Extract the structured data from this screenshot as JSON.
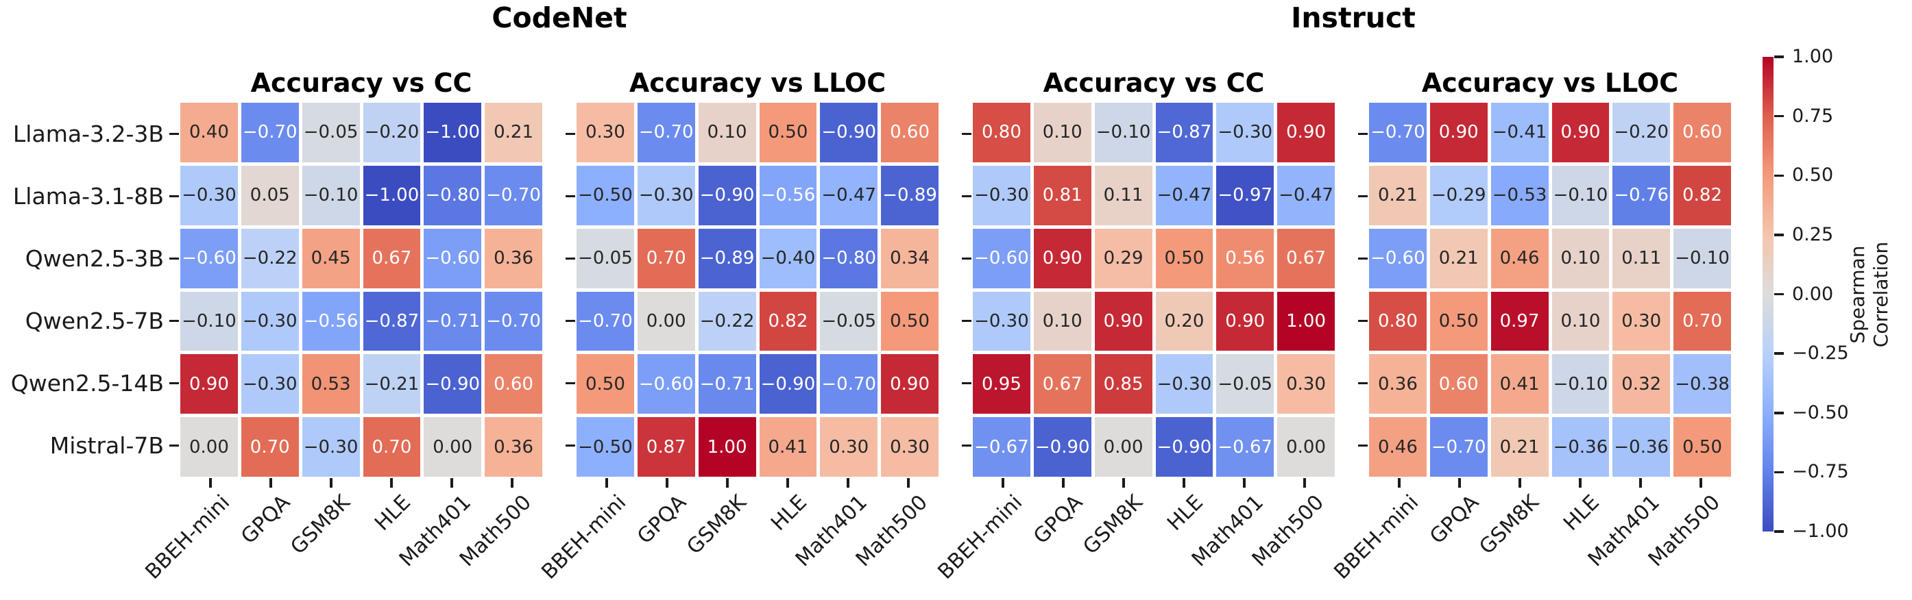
{
  "chart_data": {
    "type": "heatmap",
    "layout": "four heatmap panels in one row sharing row labels, with one shared vertical colorbar on the right; grid off; values annotated in each cell",
    "group_titles": [
      {
        "label": "CodeNet",
        "panels": [
          0,
          1
        ]
      },
      {
        "label": "Instruct",
        "panels": [
          2,
          3
        ]
      }
    ],
    "rows": [
      "Llama-3.2-3B",
      "Llama-3.1-8B",
      "Qwen2.5-3B",
      "Qwen2.5-7B",
      "Qwen2.5-14B",
      "Mistral-7B"
    ],
    "columns": [
      "BBEH-mini",
      "GPQA",
      "GSM8K",
      "HLE",
      "Math401",
      "Math500"
    ],
    "panels": [
      {
        "group": "CodeNet",
        "title": "Accuracy vs CC",
        "values": [
          [
            0.4,
            -0.7,
            -0.05,
            -0.2,
            -1.0,
            0.21
          ],
          [
            -0.3,
            0.05,
            -0.1,
            -1.0,
            -0.8,
            -0.7
          ],
          [
            -0.6,
            -0.22,
            0.45,
            0.67,
            -0.6,
            0.36
          ],
          [
            -0.1,
            -0.3,
            -0.56,
            -0.87,
            -0.71,
            -0.7
          ],
          [
            0.9,
            -0.3,
            0.53,
            -0.21,
            -0.9,
            0.6
          ],
          [
            0.0,
            0.7,
            -0.3,
            0.7,
            0.0,
            0.36
          ]
        ]
      },
      {
        "group": "CodeNet",
        "title": "Accuracy vs LLOC",
        "values": [
          [
            0.3,
            -0.7,
            0.1,
            0.5,
            -0.9,
            0.6
          ],
          [
            -0.5,
            -0.3,
            -0.9,
            -0.56,
            -0.47,
            -0.89
          ],
          [
            -0.05,
            0.7,
            -0.89,
            -0.4,
            -0.8,
            0.34
          ],
          [
            -0.7,
            0.0,
            -0.22,
            0.82,
            -0.05,
            0.5
          ],
          [
            0.5,
            -0.6,
            -0.71,
            -0.9,
            -0.7,
            0.9
          ],
          [
            -0.5,
            0.87,
            1.0,
            0.41,
            0.3,
            0.3
          ]
        ]
      },
      {
        "group": "Instruct",
        "title": "Accuracy vs CC",
        "values": [
          [
            0.8,
            0.1,
            -0.1,
            -0.87,
            -0.3,
            0.9
          ],
          [
            -0.3,
            0.81,
            0.11,
            -0.47,
            -0.97,
            -0.47
          ],
          [
            -0.6,
            0.9,
            0.29,
            0.5,
            0.56,
            0.67
          ],
          [
            -0.3,
            0.1,
            0.9,
            0.2,
            0.9,
            1.0
          ],
          [
            0.95,
            0.67,
            0.85,
            -0.3,
            -0.05,
            0.3
          ],
          [
            -0.67,
            -0.9,
            0.0,
            -0.9,
            -0.67,
            0.0
          ]
        ]
      },
      {
        "group": "Instruct",
        "title": "Accuracy vs LLOC",
        "values": [
          [
            -0.7,
            0.9,
            -0.41,
            0.9,
            -0.2,
            0.6
          ],
          [
            0.21,
            -0.29,
            -0.53,
            -0.1,
            -0.76,
            0.82
          ],
          [
            -0.6,
            0.21,
            0.46,
            0.1,
            0.11,
            -0.1
          ],
          [
            0.8,
            0.5,
            0.97,
            0.1,
            0.3,
            0.7
          ],
          [
            0.36,
            0.6,
            0.41,
            -0.1,
            0.32,
            -0.38
          ],
          [
            0.46,
            -0.7,
            0.21,
            -0.36,
            -0.36,
            0.5
          ]
        ]
      }
    ],
    "colorbar": {
      "label": "Spearman Correlation",
      "label_lines": [
        "Spearman",
        "Correlation"
      ],
      "tick_labels": [
        "1.00",
        "0.75",
        "0.50",
        "0.25",
        "0.00",
        "−0.25",
        "−0.50",
        "−0.75",
        "−1.00"
      ],
      "tick_values": [
        1.0,
        0.75,
        0.5,
        0.25,
        0.0,
        -0.25,
        -0.5,
        -0.75,
        -1.0
      ],
      "vmin": -1.0,
      "vmax": 1.0,
      "colormap": "coolwarm",
      "colormap_anchors": [
        "#3b4cc0",
        "#6282ea",
        "#8db0fe",
        "#b8d0f9",
        "#dddcdb",
        "#f5c4ad",
        "#f49a7b",
        "#de604d",
        "#b40426"
      ]
    },
    "annotation_text_colors": {
      "dark": "#262626",
      "light": "#ffffff"
    },
    "value_format": "two decimals with unicode minus"
  }
}
